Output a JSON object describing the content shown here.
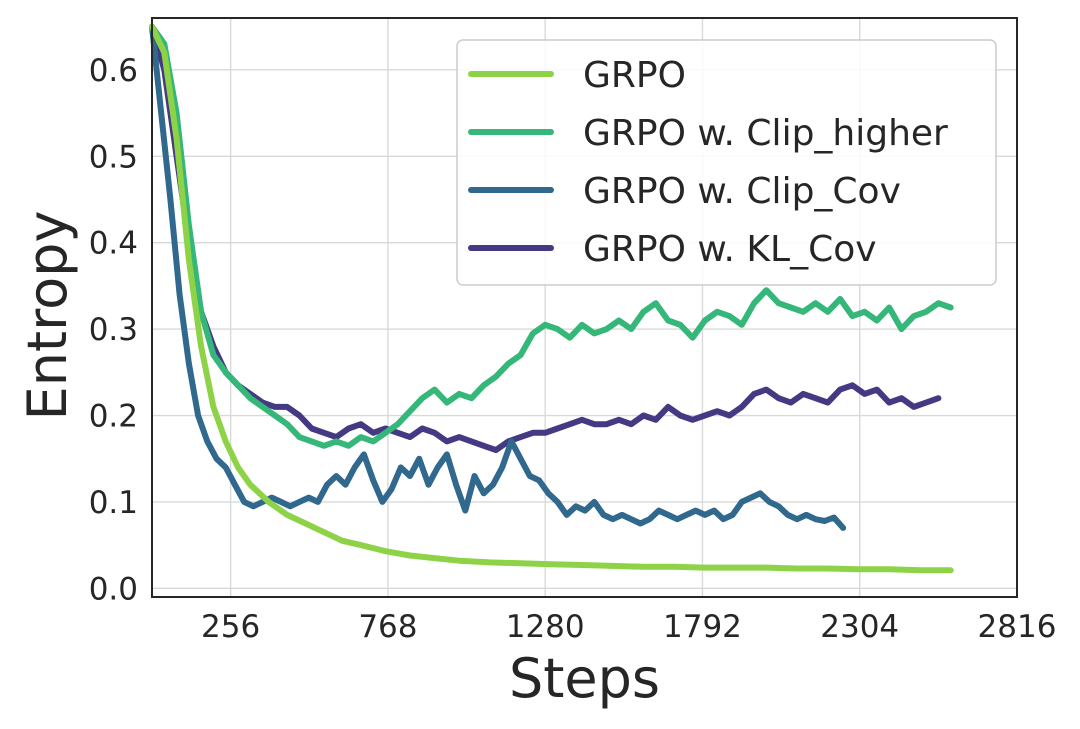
{
  "chart_data": {
    "type": "line",
    "title": "",
    "xlabel": "Steps",
    "ylabel": "Entropy",
    "xlim": [
      0,
      2816
    ],
    "ylim": [
      -0.01,
      0.66
    ],
    "xticks": [
      256,
      768,
      1280,
      1792,
      2304,
      2816
    ],
    "xtick_labels": [
      "256",
      "768",
      "1280",
      "1792",
      "2304",
      "2816"
    ],
    "yticks": [
      0.0,
      0.1,
      0.2,
      0.3,
      0.4,
      0.5,
      0.6
    ],
    "ytick_labels": [
      "0.0",
      "0.1",
      "0.2",
      "0.3",
      "0.4",
      "0.5",
      "0.6"
    ],
    "grid": true,
    "legend_position": "top-right",
    "series": [
      {
        "name": "GRPO",
        "color": "#8ed347",
        "x": [
          0,
          40,
          80,
          120,
          160,
          200,
          240,
          280,
          320,
          380,
          440,
          500,
          560,
          620,
          680,
          760,
          840,
          920,
          1000,
          1100,
          1200,
          1300,
          1400,
          1500,
          1600,
          1700,
          1800,
          1900,
          2000,
          2100,
          2200,
          2300,
          2400,
          2500,
          2600
        ],
        "y": [
          0.65,
          0.62,
          0.52,
          0.38,
          0.28,
          0.21,
          0.17,
          0.14,
          0.12,
          0.1,
          0.085,
          0.075,
          0.065,
          0.055,
          0.05,
          0.043,
          0.038,
          0.035,
          0.032,
          0.03,
          0.029,
          0.028,
          0.027,
          0.026,
          0.025,
          0.025,
          0.024,
          0.024,
          0.024,
          0.023,
          0.023,
          0.022,
          0.022,
          0.021,
          0.021
        ]
      },
      {
        "name": "GRPO w. Clip_higher",
        "color": "#35b779",
        "x": [
          0,
          40,
          80,
          120,
          160,
          200,
          240,
          280,
          320,
          360,
          400,
          440,
          480,
          520,
          560,
          600,
          640,
          680,
          720,
          760,
          800,
          840,
          880,
          920,
          960,
          1000,
          1040,
          1080,
          1120,
          1160,
          1200,
          1240,
          1280,
          1320,
          1360,
          1400,
          1440,
          1480,
          1520,
          1560,
          1600,
          1640,
          1680,
          1720,
          1760,
          1800,
          1840,
          1880,
          1920,
          1960,
          2000,
          2040,
          2080,
          2120,
          2160,
          2200,
          2240,
          2280,
          2320,
          2360,
          2400,
          2440,
          2480,
          2520,
          2560,
          2600
        ],
        "y": [
          0.65,
          0.63,
          0.55,
          0.42,
          0.32,
          0.27,
          0.25,
          0.235,
          0.22,
          0.21,
          0.2,
          0.19,
          0.175,
          0.17,
          0.165,
          0.17,
          0.165,
          0.175,
          0.17,
          0.18,
          0.19,
          0.205,
          0.22,
          0.23,
          0.215,
          0.225,
          0.22,
          0.235,
          0.245,
          0.26,
          0.27,
          0.295,
          0.305,
          0.3,
          0.29,
          0.305,
          0.295,
          0.3,
          0.31,
          0.3,
          0.32,
          0.33,
          0.31,
          0.305,
          0.29,
          0.31,
          0.32,
          0.315,
          0.305,
          0.33,
          0.345,
          0.33,
          0.325,
          0.32,
          0.33,
          0.32,
          0.335,
          0.315,
          0.32,
          0.31,
          0.325,
          0.3,
          0.315,
          0.32,
          0.33,
          0.325
        ]
      },
      {
        "name": "GRPO w. Clip_Cov",
        "color": "#31688e",
        "x": [
          0,
          30,
          60,
          90,
          120,
          150,
          180,
          210,
          240,
          270,
          300,
          330,
          360,
          390,
          420,
          450,
          480,
          510,
          540,
          570,
          600,
          630,
          660,
          690,
          720,
          750,
          780,
          810,
          840,
          870,
          900,
          930,
          960,
          990,
          1020,
          1050,
          1080,
          1110,
          1140,
          1170,
          1200,
          1230,
          1260,
          1290,
          1320,
          1350,
          1380,
          1410,
          1440,
          1470,
          1500,
          1530,
          1560,
          1590,
          1620,
          1650,
          1680,
          1710,
          1740,
          1770,
          1800,
          1830,
          1860,
          1890,
          1920,
          1950,
          1980,
          2010,
          2040,
          2070,
          2100,
          2130,
          2160,
          2190,
          2220,
          2250
        ],
        "y": [
          0.65,
          0.55,
          0.45,
          0.34,
          0.26,
          0.2,
          0.17,
          0.15,
          0.14,
          0.12,
          0.1,
          0.095,
          0.1,
          0.105,
          0.1,
          0.095,
          0.1,
          0.105,
          0.1,
          0.12,
          0.13,
          0.12,
          0.14,
          0.155,
          0.125,
          0.1,
          0.115,
          0.14,
          0.13,
          0.15,
          0.12,
          0.14,
          0.155,
          0.12,
          0.09,
          0.13,
          0.11,
          0.12,
          0.14,
          0.17,
          0.15,
          0.13,
          0.125,
          0.11,
          0.1,
          0.085,
          0.095,
          0.09,
          0.1,
          0.085,
          0.08,
          0.085,
          0.08,
          0.075,
          0.08,
          0.09,
          0.085,
          0.08,
          0.085,
          0.09,
          0.085,
          0.09,
          0.08,
          0.085,
          0.1,
          0.105,
          0.11,
          0.1,
          0.095,
          0.085,
          0.08,
          0.085,
          0.08,
          0.078,
          0.082,
          0.07
        ]
      },
      {
        "name": "GRPO w. KL_Cov",
        "color": "#443983",
        "x": [
          0,
          40,
          80,
          120,
          160,
          200,
          240,
          280,
          320,
          360,
          400,
          440,
          480,
          520,
          560,
          600,
          640,
          680,
          720,
          760,
          800,
          840,
          880,
          920,
          960,
          1000,
          1040,
          1080,
          1120,
          1160,
          1200,
          1240,
          1280,
          1320,
          1360,
          1400,
          1440,
          1480,
          1520,
          1560,
          1600,
          1640,
          1680,
          1720,
          1760,
          1800,
          1840,
          1880,
          1920,
          1960,
          2000,
          2040,
          2080,
          2120,
          2160,
          2200,
          2240,
          2280,
          2320,
          2360,
          2400,
          2440,
          2480,
          2520,
          2560
        ],
        "y": [
          0.65,
          0.6,
          0.5,
          0.4,
          0.32,
          0.28,
          0.25,
          0.235,
          0.225,
          0.215,
          0.21,
          0.21,
          0.2,
          0.185,
          0.18,
          0.175,
          0.185,
          0.19,
          0.18,
          0.185,
          0.18,
          0.175,
          0.185,
          0.18,
          0.17,
          0.175,
          0.17,
          0.165,
          0.16,
          0.17,
          0.175,
          0.18,
          0.18,
          0.185,
          0.19,
          0.195,
          0.19,
          0.19,
          0.195,
          0.19,
          0.2,
          0.195,
          0.21,
          0.2,
          0.195,
          0.2,
          0.205,
          0.2,
          0.21,
          0.225,
          0.23,
          0.22,
          0.215,
          0.225,
          0.22,
          0.215,
          0.23,
          0.235,
          0.225,
          0.23,
          0.215,
          0.22,
          0.21,
          0.215,
          0.22
        ]
      }
    ]
  }
}
